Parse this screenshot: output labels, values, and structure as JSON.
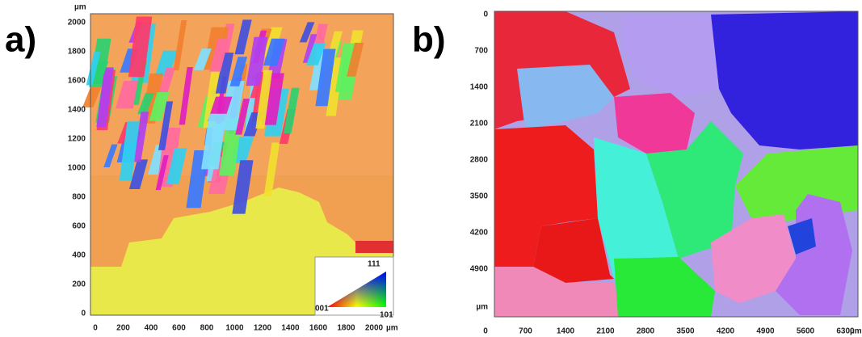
{
  "panel_a": {
    "label": "a)",
    "y_unit": "µm",
    "y_ticks": [
      0,
      200,
      400,
      600,
      800,
      1000,
      1200,
      1400,
      1600,
      1800,
      2000
    ],
    "x_ticks": [
      0,
      200,
      400,
      600,
      800,
      1000,
      1200,
      1400,
      1600,
      1800,
      2000
    ],
    "x_unit": "µm",
    "legend": {
      "top": "111",
      "left": "001",
      "right": "101"
    }
  },
  "panel_b": {
    "label": "b)",
    "y_ticks": [
      0,
      700,
      1400,
      2100,
      2800,
      3500,
      4200,
      4900
    ],
    "y_unit": "µm",
    "x_ticks": [
      0,
      700,
      1400,
      2100,
      2800,
      3500,
      4200,
      4900,
      5600,
      6300
    ],
    "x_unit": "µm"
  }
}
